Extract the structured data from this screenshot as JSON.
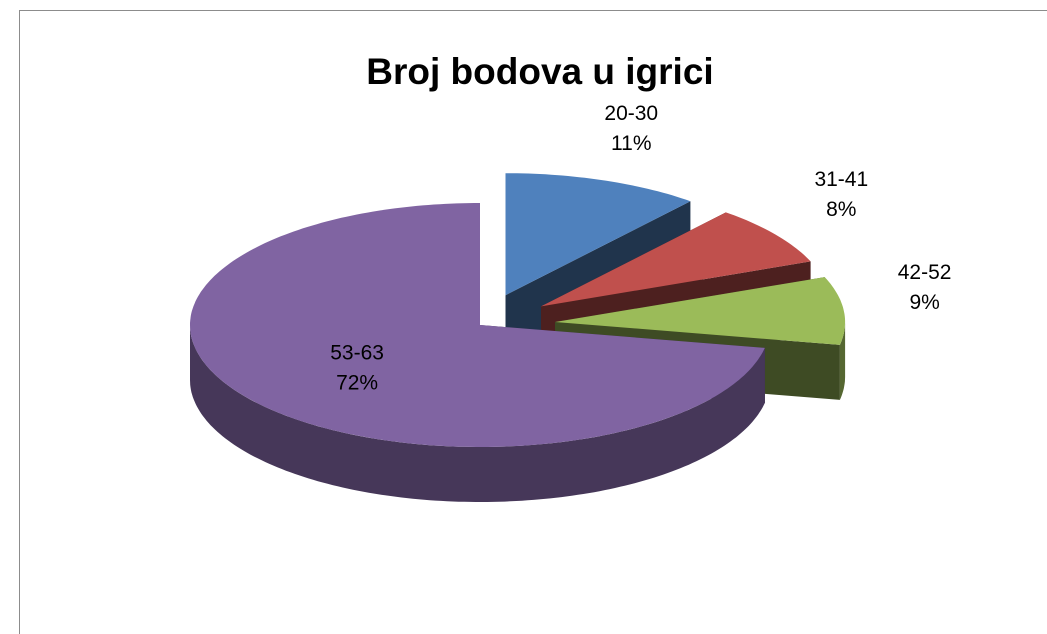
{
  "chart_data": {
    "type": "pie3d",
    "title": "Broj bodova u igrici",
    "categories": [
      "20-30",
      "31-41",
      "42-52",
      "53-63"
    ],
    "values": [
      11,
      8,
      9,
      72
    ],
    "value_labels": [
      "11%",
      "8%",
      "9%",
      "72%"
    ],
    "colors": [
      "#4f81bd",
      "#c0504d",
      "#9bbb59",
      "#8064a2"
    ]
  }
}
